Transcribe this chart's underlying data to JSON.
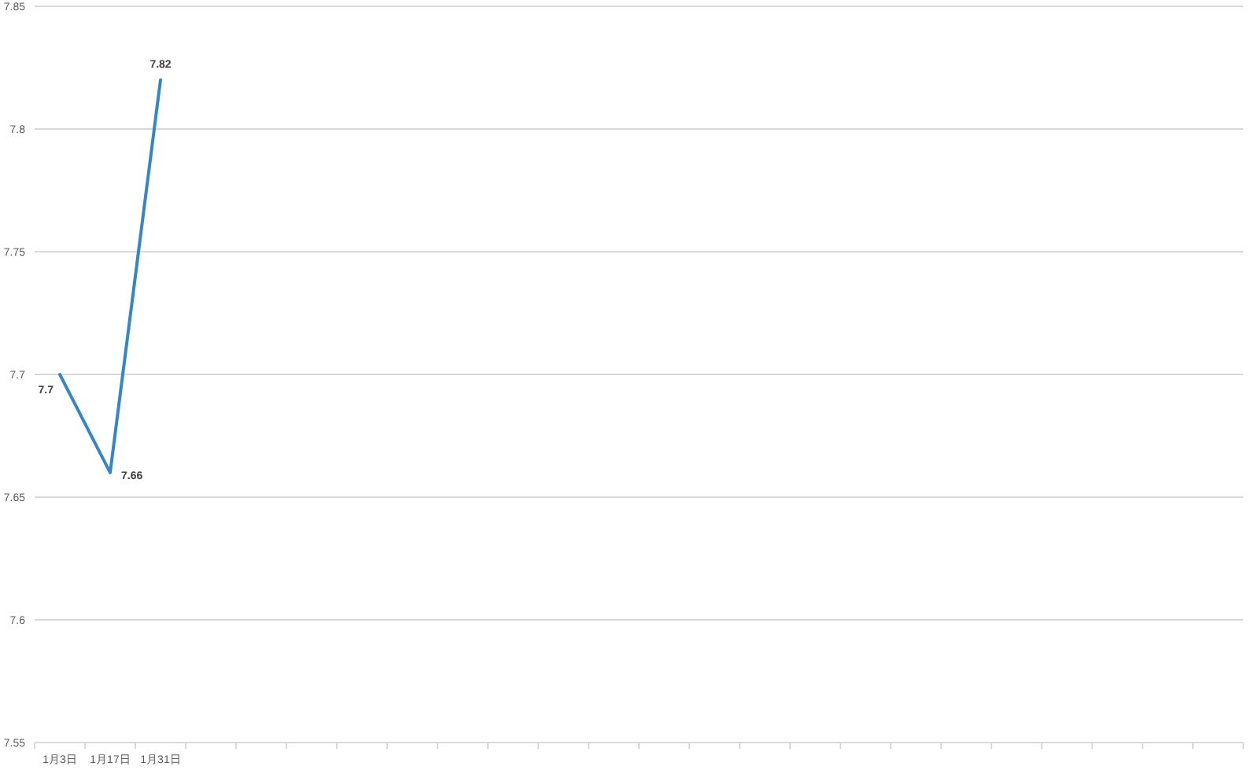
{
  "chart_data": {
    "type": "line",
    "categories": [
      "1月3日",
      "1月17日",
      "1月31日",
      null,
      null,
      null,
      null,
      null,
      null,
      null,
      null,
      null,
      null,
      null,
      null,
      null,
      null,
      null,
      null,
      null,
      null,
      null,
      null,
      null
    ],
    "series": [
      {
        "color": "#3586c6",
        "values": [
          7.7,
          7.66,
          7.82,
          null,
          null,
          null,
          null,
          null,
          null,
          null,
          null,
          null,
          null,
          null,
          null,
          null,
          null,
          null,
          null,
          null,
          null,
          null,
          null,
          null
        ]
      }
    ],
    "ylim": [
      7.55,
      7.85
    ],
    "yticks": [
      7.55,
      7.6,
      7.65,
      7.7,
      7.75,
      7.8,
      7.85
    ],
    "grid": "y",
    "data_labels": true
  }
}
